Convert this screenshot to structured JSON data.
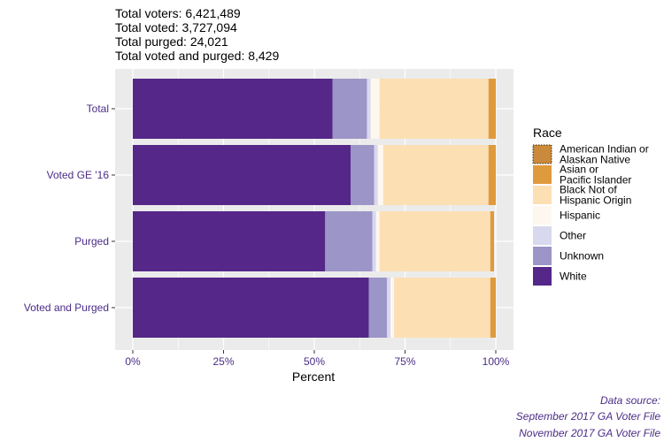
{
  "header": {
    "lines": [
      "Total voters: 6,421,489",
      "Total voted: 3,727,094",
      "Total purged: 24,021",
      "Total voted and purged: 8,429"
    ]
  },
  "caption": {
    "lines": [
      "Data source:",
      "September 2017 GA Voter File",
      "November 2017 GA Voter File"
    ]
  },
  "colors": {
    "panel_bg": "#EBEBEB",
    "grid": "#FFFFFF",
    "accent_text": "#4B2C87"
  },
  "chart_data": {
    "type": "bar",
    "orientation": "horizontal",
    "stacked": true,
    "categories": [
      "Total",
      "Voted GE '16",
      "Purged",
      "Voted and Purged"
    ],
    "xlabel": "Percent",
    "ylabel": "",
    "xlim": [
      0,
      1
    ],
    "x_ticks": [
      {
        "value": 0,
        "label": "0%"
      },
      {
        "value": 0.25,
        "label": "25%"
      },
      {
        "value": 0.5,
        "label": "50%"
      },
      {
        "value": 0.75,
        "label": "75%"
      },
      {
        "value": 1,
        "label": "100%"
      }
    ],
    "grid": true,
    "legend": {
      "title": "Race",
      "position": "right",
      "items": [
        {
          "label": [
            "American Indian or",
            "Alaskan Native"
          ],
          "color": "#C98A3C",
          "dotted": true
        },
        {
          "label": [
            "Asian or",
            "Pacific Islander"
          ],
          "color": "#E09A3E"
        },
        {
          "label": [
            "Black Not of",
            "Hispanic Origin"
          ],
          "color": "#FDDFB4"
        },
        {
          "label": [
            "Hispanic"
          ],
          "color": "#FDF7EF"
        },
        {
          "label": [
            "Other"
          ],
          "color": "#D8D8EE"
        },
        {
          "label": [
            "Unknown"
          ],
          "color": "#9C95C7"
        },
        {
          "label": [
            "White"
          ],
          "color": "#542788"
        }
      ]
    },
    "series": [
      {
        "name": "White",
        "color": "#542788",
        "values": [
          0.55,
          0.6,
          0.53,
          0.65
        ]
      },
      {
        "name": "Unknown",
        "color": "#9C95C7",
        "values": [
          0.095,
          0.065,
          0.13,
          0.05
        ]
      },
      {
        "name": "Other",
        "color": "#D8D8EE",
        "values": [
          0.01,
          0.01,
          0.01,
          0.01
        ]
      },
      {
        "name": "Hispanic",
        "color": "#FDF7EF",
        "values": [
          0.025,
          0.015,
          0.01,
          0.01
        ]
      },
      {
        "name": "Black Not of Hispanic Origin",
        "color": "#FDDFB4",
        "values": [
          0.3,
          0.29,
          0.305,
          0.265
        ]
      },
      {
        "name": "Asian or Pacific Islander",
        "color": "#E09A3E",
        "values": [
          0.02,
          0.02,
          0.009,
          0.015
        ]
      },
      {
        "name": "American Indian or Alaskan Native",
        "color": "#C98A3C",
        "values": [
          0.0,
          0.0,
          0.001,
          0.0
        ]
      }
    ]
  }
}
